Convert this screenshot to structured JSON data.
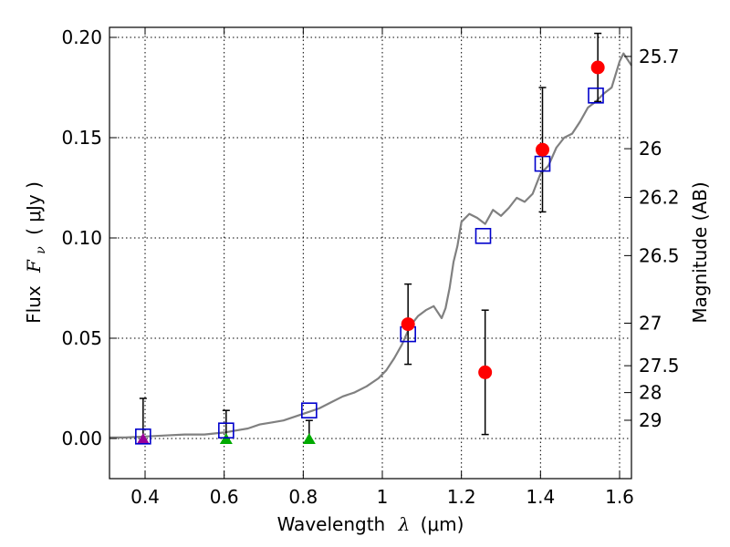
{
  "chart_data": {
    "type": "scatter",
    "xlabel": "Wavelength",
    "xlabel_symbol": "λ",
    "xlabel_unit": "(μm)",
    "ylabel": "Flux",
    "ylabel_symbol": "F",
    "ylabel_sub": "ν",
    "ylabel_unit": "( μJy )",
    "y2label": "Magnitude (AB)",
    "xlim": [
      0.31,
      1.63
    ],
    "ylim": [
      -0.02,
      0.205
    ],
    "x_ticks": [
      0.4,
      0.6,
      0.8,
      1.0,
      1.2,
      1.4,
      1.6
    ],
    "x_tick_labels": [
      "0.4",
      "0.6",
      "0.8",
      "1",
      "1.2",
      "1.4",
      "1.6"
    ],
    "y_ticks": [
      0.0,
      0.05,
      0.1,
      0.15,
      0.2
    ],
    "y_tick_labels": [
      "0.00",
      "0.05",
      "0.10",
      "0.15",
      "0.20"
    ],
    "grid": true,
    "mag_ticks": [
      {
        "label": "25.7",
        "flux": 0.1905
      },
      {
        "label": "26",
        "flux": 0.1445
      },
      {
        "label": "26.2",
        "flux": 0.1202
      },
      {
        "label": "26.5",
        "flux": 0.0912
      },
      {
        "label": "27",
        "flux": 0.0575
      },
      {
        "label": "27.5",
        "flux": 0.0363
      },
      {
        "label": "28",
        "flux": 0.0229
      },
      {
        "label": "29",
        "flux": 0.0091
      }
    ],
    "observed": {
      "color": "#ff0000",
      "marker": "circle",
      "points": [
        {
          "x": 1.065,
          "y": 0.057,
          "err_lo": 0.02,
          "err_hi": 0.02
        },
        {
          "x": 1.26,
          "y": 0.033,
          "err_lo": 0.031,
          "err_hi": 0.031
        },
        {
          "x": 1.405,
          "y": 0.144,
          "err_lo": 0.031,
          "err_hi": 0.031
        },
        {
          "x": 1.545,
          "y": 0.185,
          "err_lo": 0.017,
          "err_hi": 0.017
        }
      ]
    },
    "upper_limits": {
      "color_error": "#000000",
      "points": [
        {
          "x": 0.395,
          "y": 0.0,
          "err_lo": 0.0,
          "err_hi": 0.02,
          "marker_color": "#990099"
        },
        {
          "x": 0.605,
          "y": 0.0,
          "err_lo": 0.0,
          "err_hi": 0.014,
          "marker_color": "#00aa00"
        },
        {
          "x": 0.815,
          "y": 0.0,
          "err_lo": 0.0,
          "err_hi": 0.009,
          "marker_color": "#00aa00"
        }
      ]
    },
    "model_bandpass": {
      "color": "#0000cc",
      "marker": "square",
      "points": [
        {
          "x": 0.395,
          "y": 0.001
        },
        {
          "x": 0.605,
          "y": 0.004
        },
        {
          "x": 0.815,
          "y": 0.014
        },
        {
          "x": 1.065,
          "y": 0.052
        },
        {
          "x": 1.255,
          "y": 0.101
        },
        {
          "x": 1.405,
          "y": 0.137
        },
        {
          "x": 1.54,
          "y": 0.171
        }
      ]
    },
    "model_sed": {
      "color": "#808080",
      "x": [
        0.31,
        0.35,
        0.4,
        0.45,
        0.5,
        0.55,
        0.6,
        0.63,
        0.66,
        0.69,
        0.72,
        0.75,
        0.78,
        0.81,
        0.84,
        0.87,
        0.9,
        0.93,
        0.96,
        0.99,
        1.01,
        1.03,
        1.05,
        1.07,
        1.09,
        1.11,
        1.13,
        1.15,
        1.16,
        1.17,
        1.18,
        1.19,
        1.2,
        1.22,
        1.24,
        1.26,
        1.28,
        1.3,
        1.32,
        1.34,
        1.36,
        1.38,
        1.4,
        1.42,
        1.44,
        1.46,
        1.48,
        1.5,
        1.52,
        1.54,
        1.56,
        1.58,
        1.6,
        1.61,
        1.63
      ],
      "y": [
        0.0005,
        0.0005,
        0.001,
        0.0015,
        0.002,
        0.002,
        0.003,
        0.004,
        0.005,
        0.007,
        0.008,
        0.009,
        0.011,
        0.013,
        0.015,
        0.018,
        0.021,
        0.023,
        0.026,
        0.03,
        0.034,
        0.04,
        0.047,
        0.056,
        0.061,
        0.064,
        0.066,
        0.06,
        0.065,
        0.075,
        0.088,
        0.096,
        0.108,
        0.112,
        0.11,
        0.107,
        0.114,
        0.111,
        0.115,
        0.12,
        0.118,
        0.122,
        0.132,
        0.136,
        0.145,
        0.15,
        0.152,
        0.158,
        0.165,
        0.168,
        0.172,
        0.175,
        0.188,
        0.192,
        0.186
      ]
    }
  }
}
